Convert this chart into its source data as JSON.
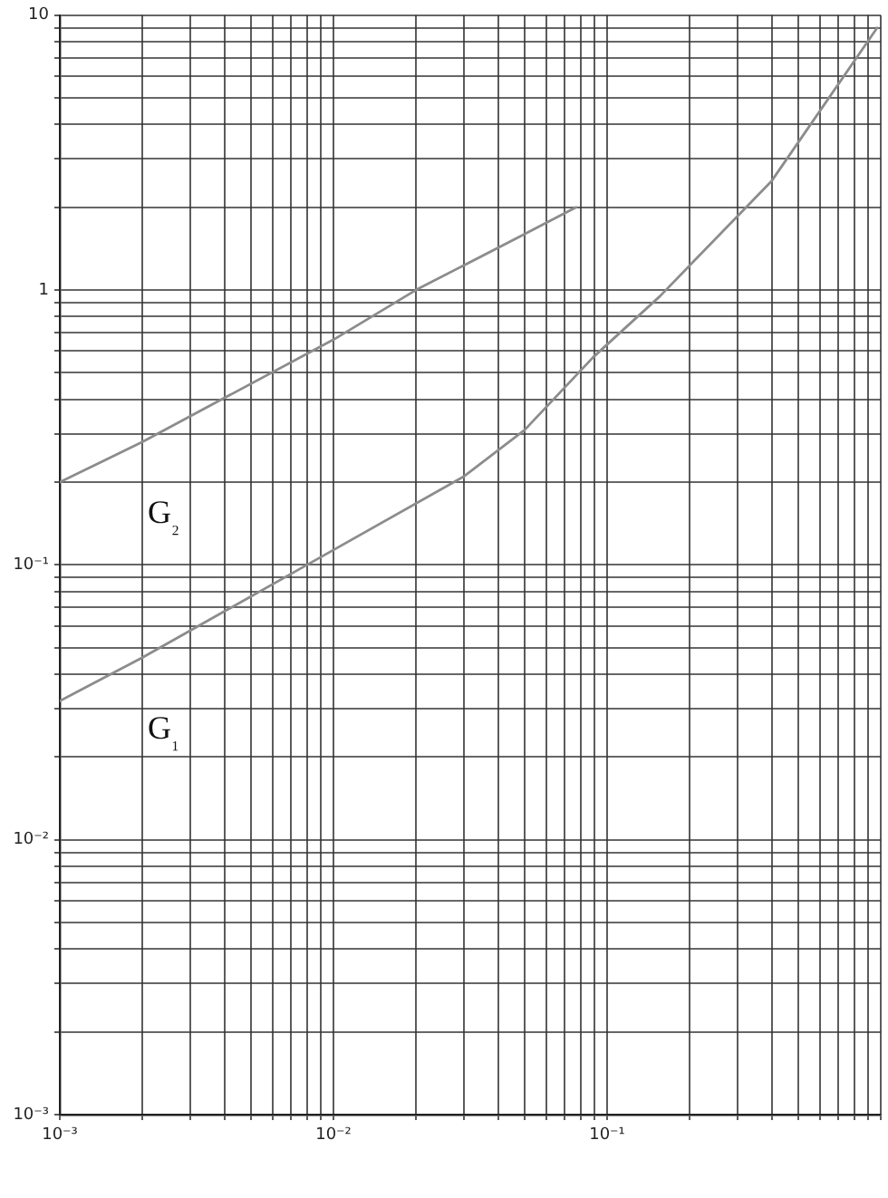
{
  "chart_data": {
    "type": "line",
    "log": "xy",
    "grid": true,
    "legend": false,
    "marker": "none",
    "line_style": "solid",
    "xlim": [
      0.001,
      1
    ],
    "xticks": [
      {
        "value": 0.001,
        "label": "10⁻³"
      },
      {
        "value": 0.002,
        "label": null
      },
      {
        "value": 0.003,
        "label": null
      },
      {
        "value": 0.004,
        "label": null
      },
      {
        "value": 0.005,
        "label": null
      },
      {
        "value": 0.006,
        "label": null
      },
      {
        "value": 0.007,
        "label": null
      },
      {
        "value": 0.008,
        "label": null
      },
      {
        "value": 0.009,
        "label": null
      },
      {
        "value": 0.01,
        "label": "10⁻²"
      },
      {
        "value": 0.02,
        "label": null
      },
      {
        "value": 0.03,
        "label": null
      },
      {
        "value": 0.04,
        "label": null
      },
      {
        "value": 0.05,
        "label": null
      },
      {
        "value": 0.06,
        "label": null
      },
      {
        "value": 0.07,
        "label": null
      },
      {
        "value": 0.08,
        "label": null
      },
      {
        "value": 0.09,
        "label": null
      },
      {
        "value": 0.1,
        "label": "10⁻¹"
      },
      {
        "value": 0.2,
        "label": null
      },
      {
        "value": 0.3,
        "label": null
      },
      {
        "value": 0.4,
        "label": null
      },
      {
        "value": 0.5,
        "label": null
      },
      {
        "value": 0.6,
        "label": null
      },
      {
        "value": 0.7,
        "label": null
      },
      {
        "value": 0.8,
        "label": null
      },
      {
        "value": 0.9,
        "label": null
      },
      {
        "value": 1,
        "label": null
      }
    ],
    "ylim": [
      0.001,
      10
    ],
    "yticks": [
      {
        "value": 0.001,
        "label": "10⁻³"
      },
      {
        "value": 0.002,
        "label": null
      },
      {
        "value": 0.003,
        "label": null
      },
      {
        "value": 0.004,
        "label": null
      },
      {
        "value": 0.005,
        "label": null
      },
      {
        "value": 0.006,
        "label": null
      },
      {
        "value": 0.007,
        "label": null
      },
      {
        "value": 0.008,
        "label": null
      },
      {
        "value": 0.009,
        "label": null
      },
      {
        "value": 0.01,
        "label": "10⁻²"
      },
      {
        "value": 0.02,
        "label": null
      },
      {
        "value": 0.03,
        "label": null
      },
      {
        "value": 0.04,
        "label": null
      },
      {
        "value": 0.05,
        "label": null
      },
      {
        "value": 0.06,
        "label": null
      },
      {
        "value": 0.07,
        "label": null
      },
      {
        "value": 0.08,
        "label": null
      },
      {
        "value": 0.09,
        "label": null
      },
      {
        "value": 0.1,
        "label": "10⁻¹"
      },
      {
        "value": 0.2,
        "label": null
      },
      {
        "value": 0.3,
        "label": null
      },
      {
        "value": 0.4,
        "label": null
      },
      {
        "value": 0.5,
        "label": null
      },
      {
        "value": 0.6,
        "label": null
      },
      {
        "value": 0.7,
        "label": null
      },
      {
        "value": 0.8,
        "label": null
      },
      {
        "value": 0.9,
        "label": null
      },
      {
        "value": 1,
        "label": "1"
      },
      {
        "value": 2,
        "label": null
      },
      {
        "value": 3,
        "label": null
      },
      {
        "value": 4,
        "label": null
      },
      {
        "value": 5,
        "label": null
      },
      {
        "value": 6,
        "label": null
      },
      {
        "value": 7,
        "label": null
      },
      {
        "value": 8,
        "label": null
      },
      {
        "value": 9,
        "label": null
      },
      {
        "value": 10,
        "label": "10"
      }
    ],
    "series": [
      {
        "name": "G₂",
        "color": "#8c8c8c",
        "x": [
          0.001,
          0.002,
          0.0039,
          0.01,
          0.02,
          0.05,
          0.077
        ],
        "values": [
          0.2,
          0.28,
          0.4,
          0.66,
          1.0,
          1.6,
          2.0
        ]
      },
      {
        "name": "G₁",
        "color": "#8c8c8c",
        "x": [
          0.001,
          0.002,
          0.008,
          0.03,
          0.05,
          0.089,
          0.156,
          0.4,
          0.97
        ],
        "values": [
          0.032,
          0.046,
          0.1,
          0.21,
          0.31,
          0.57,
          0.95,
          2.5,
          9.0
        ]
      }
    ]
  }
}
